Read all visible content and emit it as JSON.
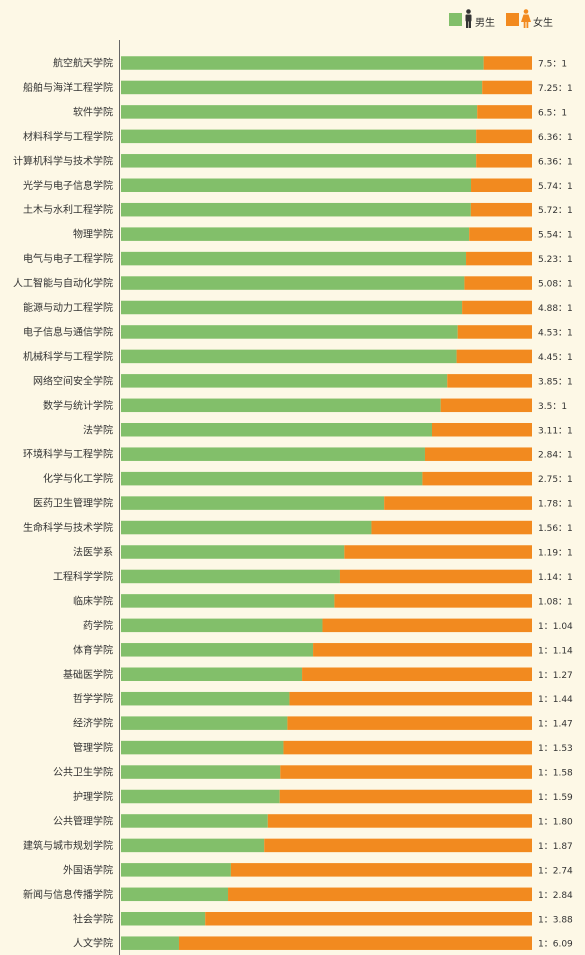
{
  "legend": {
    "male_label": "男生",
    "female_label": "女生",
    "male_icon": "male-person-icon",
    "female_icon": "female-person-icon",
    "placement": "top-right"
  },
  "colors": {
    "male": "#82bf6a",
    "female": "#f28a1f",
    "background": "#fdf8e6",
    "text": "#333333",
    "axis": "#666666"
  },
  "chart_data": {
    "type": "bar",
    "orientation": "horizontal",
    "stacked": "percent",
    "xlim": [
      0,
      100
    ],
    "grid": false,
    "series": [
      {
        "name": "男生",
        "color": "#82bf6a"
      },
      {
        "name": "女生",
        "color": "#f28a1f"
      }
    ],
    "rows": [
      {
        "category": "航空航天学院",
        "ratio_label": "7.5：1",
        "male": 7.5,
        "female": 1
      },
      {
        "category": "船舶与海洋工程学院",
        "ratio_label": "7.25：1",
        "male": 7.25,
        "female": 1
      },
      {
        "category": "软件学院",
        "ratio_label": "6.5：1",
        "male": 6.5,
        "female": 1
      },
      {
        "category": "材料科学与工程学院",
        "ratio_label": "6.36：1",
        "male": 6.36,
        "female": 1
      },
      {
        "category": "计算机科学与技术学院",
        "ratio_label": "6.36：1",
        "male": 6.36,
        "female": 1
      },
      {
        "category": "光学与电子信息学院",
        "ratio_label": "5.74：1",
        "male": 5.74,
        "female": 1
      },
      {
        "category": "土木与水利工程学院",
        "ratio_label": "5.72：1",
        "male": 5.72,
        "female": 1
      },
      {
        "category": "物理学院",
        "ratio_label": "5.54：1",
        "male": 5.54,
        "female": 1
      },
      {
        "category": "电气与电子工程学院",
        "ratio_label": "5.23：1",
        "male": 5.23,
        "female": 1
      },
      {
        "category": "人工智能与自动化学院",
        "ratio_label": "5.08：1",
        "male": 5.08,
        "female": 1
      },
      {
        "category": "能源与动力工程学院",
        "ratio_label": "4.88：1",
        "male": 4.88,
        "female": 1
      },
      {
        "category": "电子信息与通信学院",
        "ratio_label": "4.53：1",
        "male": 4.53,
        "female": 1
      },
      {
        "category": "机械科学与工程学院",
        "ratio_label": "4.45：1",
        "male": 4.45,
        "female": 1
      },
      {
        "category": "网络空间安全学院",
        "ratio_label": "3.85：1",
        "male": 3.85,
        "female": 1
      },
      {
        "category": "数学与统计学院",
        "ratio_label": "3.5：1",
        "male": 3.5,
        "female": 1
      },
      {
        "category": "法学院",
        "ratio_label": "3.11：1",
        "male": 3.11,
        "female": 1
      },
      {
        "category": "环境科学与工程学院",
        "ratio_label": "2.84：1",
        "male": 2.84,
        "female": 1
      },
      {
        "category": "化学与化工学院",
        "ratio_label": "2.75：1",
        "male": 2.75,
        "female": 1
      },
      {
        "category": "医药卫生管理学院",
        "ratio_label": "1.78：1",
        "male": 1.78,
        "female": 1
      },
      {
        "category": "生命科学与技术学院",
        "ratio_label": "1.56：1",
        "male": 1.56,
        "female": 1
      },
      {
        "category": "法医学系",
        "ratio_label": "1.19：1",
        "male": 1.19,
        "female": 1
      },
      {
        "category": "工程科学学院",
        "ratio_label": "1.14：1",
        "male": 1.14,
        "female": 1
      },
      {
        "category": "临床学院",
        "ratio_label": "1.08：1",
        "male": 1.08,
        "female": 1
      },
      {
        "category": "药学院",
        "ratio_label": "1：1.04",
        "male": 1,
        "female": 1.04
      },
      {
        "category": "体育学院",
        "ratio_label": "1：1.14",
        "male": 1,
        "female": 1.14
      },
      {
        "category": "基础医学院",
        "ratio_label": "1：1.27",
        "male": 1,
        "female": 1.27
      },
      {
        "category": "哲学学院",
        "ratio_label": "1：1.44",
        "male": 1,
        "female": 1.44
      },
      {
        "category": "经济学院",
        "ratio_label": "1：1.47",
        "male": 1,
        "female": 1.47
      },
      {
        "category": "管理学院",
        "ratio_label": "1：1.53",
        "male": 1,
        "female": 1.53
      },
      {
        "category": "公共卫生学院",
        "ratio_label": "1：1.58",
        "male": 1,
        "female": 1.58
      },
      {
        "category": "护理学院",
        "ratio_label": "1：1.59",
        "male": 1,
        "female": 1.59
      },
      {
        "category": "公共管理学院",
        "ratio_label": "1：1.80",
        "male": 1,
        "female": 1.8
      },
      {
        "category": "建筑与城市规划学院",
        "ratio_label": "1：1.87",
        "male": 1,
        "female": 1.87
      },
      {
        "category": "外国语学院",
        "ratio_label": "1：2.74",
        "male": 1,
        "female": 2.74
      },
      {
        "category": "新闻与信息传播学院",
        "ratio_label": "1：2.84",
        "male": 1,
        "female": 2.84
      },
      {
        "category": "社会学院",
        "ratio_label": "1：3.88",
        "male": 1,
        "female": 3.88
      },
      {
        "category": "人文学院",
        "ratio_label": "1：6.09",
        "male": 1,
        "female": 6.09
      }
    ]
  }
}
